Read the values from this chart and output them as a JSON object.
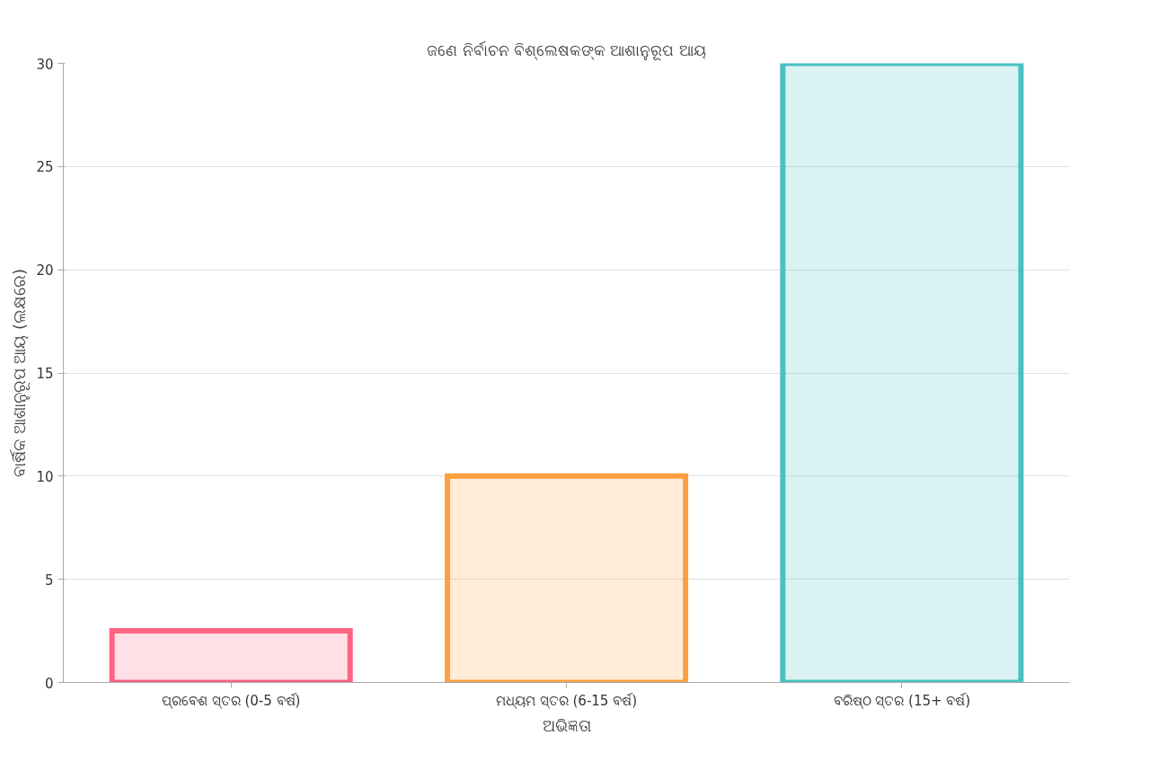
{
  "chart_data": {
    "type": "bar",
    "title": "ଜଣେ ନିର୍ବାଚନ ବିଶ୍ଲେଷକଙ୍କ ଆଶାନୁରୂପ ଆୟ",
    "xlabel": "ଅଭିଜ୍ଞତା",
    "ylabel": "ବାର୍ଷିକ ଆଶାନୁରୂପ ଆୟ (ଲକ୍ଷରେ)",
    "categories": [
      "ପ୍ରବେଶ ସ୍ତର (0-5 ବର୍ଷ)",
      "ମଧ୍ୟମ ସ୍ତର (6-15 ବର୍ଷ)",
      "ବରିଷ୍ଠ ସ୍ତର (15+ ବର୍ଷ)"
    ],
    "values": [
      2.5,
      10,
      30
    ],
    "colors": [
      "#ff6384",
      "#ff9f40",
      "#4bc0c0"
    ],
    "ylim": [
      0,
      30
    ],
    "yticks": [
      0,
      5,
      10,
      15,
      20,
      25,
      30
    ],
    "grid": "y"
  }
}
